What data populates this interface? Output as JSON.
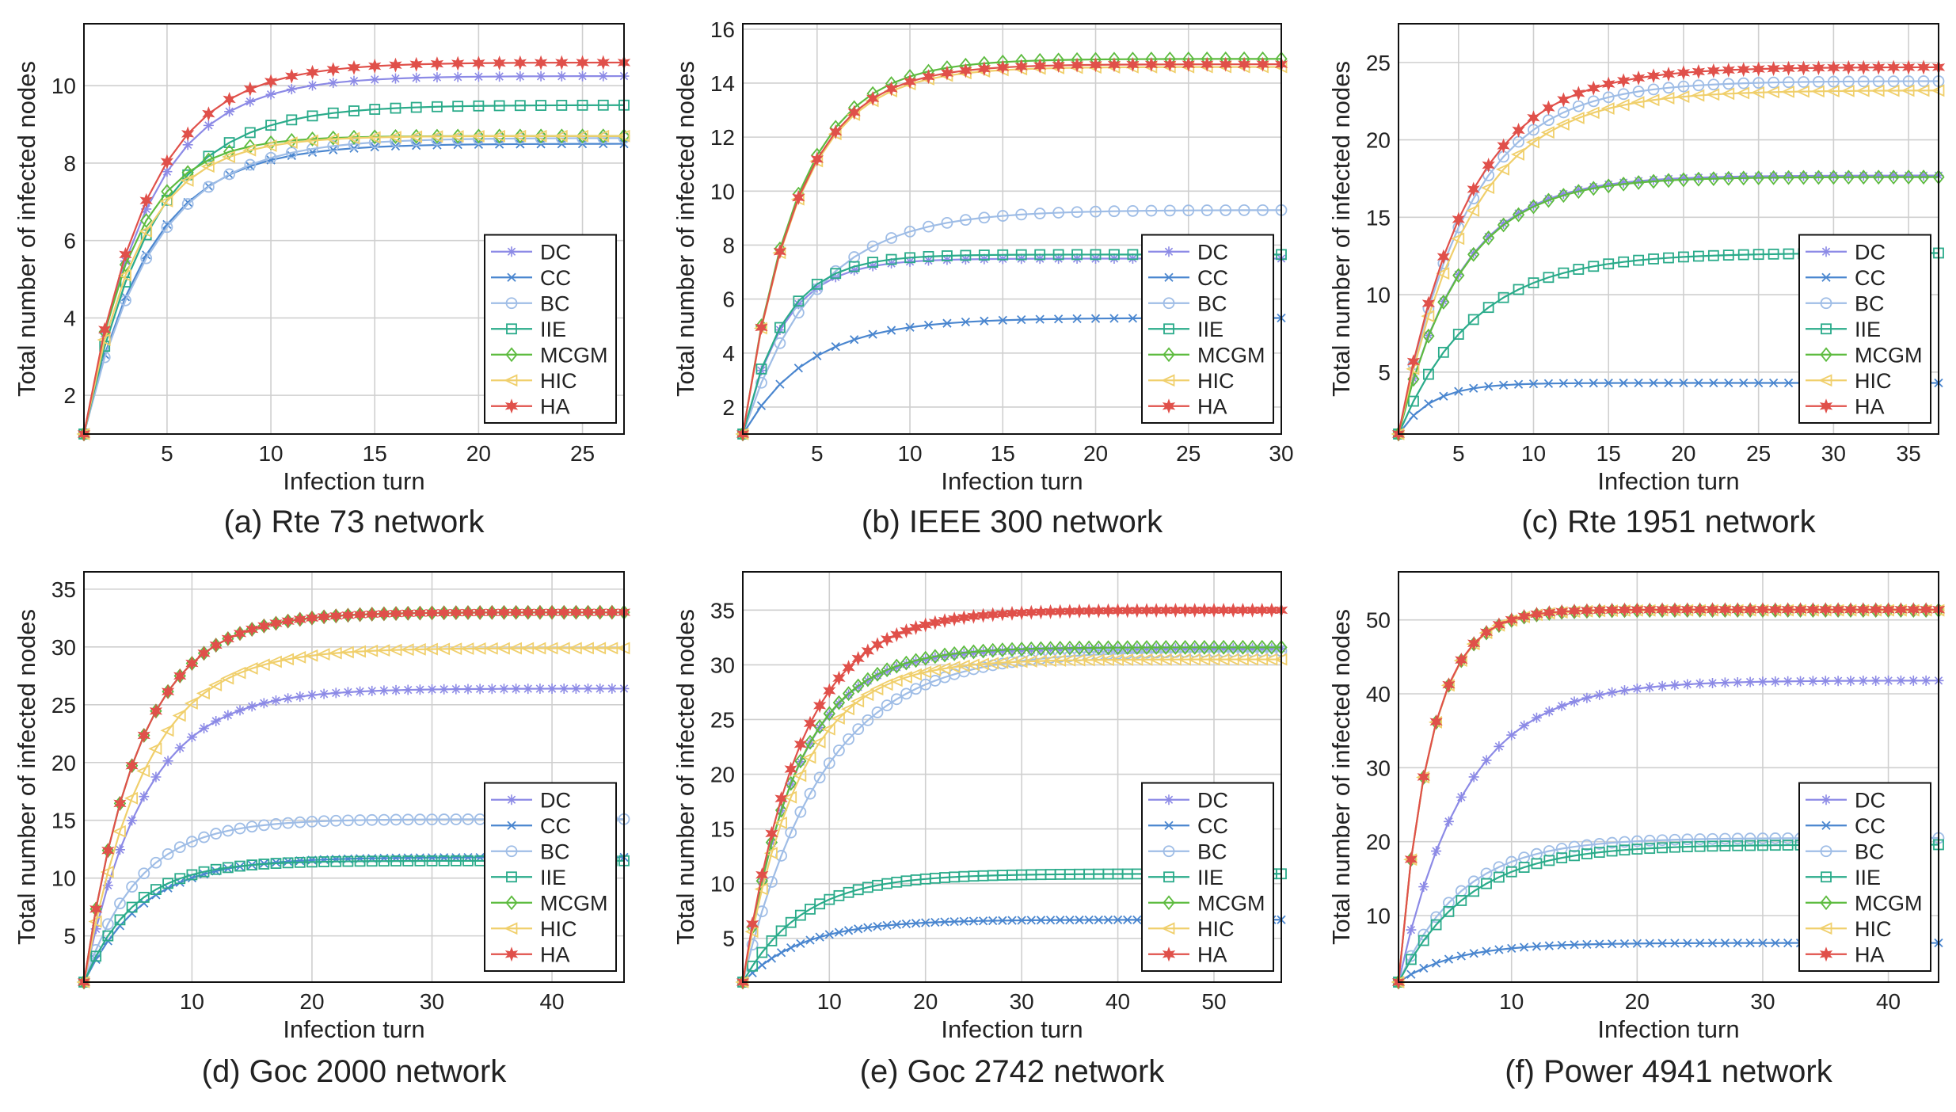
{
  "series_styles": [
    {
      "name": "DC",
      "color": "#8c8ae6",
      "marker": "asterisk"
    },
    {
      "name": "CC",
      "color": "#4a86cf",
      "marker": "x"
    },
    {
      "name": "BC",
      "color": "#9fbde6",
      "marker": "circle"
    },
    {
      "name": "IIE",
      "color": "#2aab8a",
      "marker": "square"
    },
    {
      "name": "MCGM",
      "color": "#5dbb3f",
      "marker": "diamond"
    },
    {
      "name": "HIC",
      "color": "#f0cf6b",
      "marker": "triangle-left"
    },
    {
      "name": "HA",
      "color": "#e0504a",
      "marker": "star"
    }
  ],
  "chart_data": [
    {
      "type": "line",
      "caption": "(a) Rte 73 network",
      "xlabel": "Infection turn",
      "ylabel": "Total number of infected nodes",
      "xlim": [
        1,
        27
      ],
      "ylim": [
        1,
        11.6
      ],
      "xticks": [
        5,
        10,
        15,
        20,
        25
      ],
      "yticks": [
        2,
        4,
        6,
        8,
        10
      ],
      "n_points": 27,
      "grid": true,
      "legend": "bottom-right",
      "series": [
        {
          "name": "DC",
          "start": 1,
          "final": 10.25,
          "rate": 0.33
        },
        {
          "name": "CC",
          "start": 1,
          "final": 8.5,
          "rate": 0.32
        },
        {
          "name": "BC",
          "start": 1,
          "final": 8.65,
          "rate": 0.3
        },
        {
          "name": "IIE",
          "start": 1,
          "final": 9.5,
          "rate": 0.31
        },
        {
          "name": "MCGM",
          "start": 1,
          "final": 8.7,
          "rate": 0.42
        },
        {
          "name": "HIC",
          "start": 1,
          "final": 8.7,
          "rate": 0.38
        },
        {
          "name": "HA",
          "start": 1,
          "final": 10.6,
          "rate": 0.33
        }
      ]
    },
    {
      "type": "line",
      "caption": "(b) IEEE 300 network",
      "xlabel": "Infection turn",
      "ylabel": "Total number of infected nodes",
      "xlim": [
        1,
        30
      ],
      "ylim": [
        1,
        16.2
      ],
      "xticks": [
        5,
        10,
        15,
        20,
        25,
        30
      ],
      "yticks": [
        2,
        4,
        6,
        8,
        10,
        12,
        14,
        16
      ],
      "n_points": 30,
      "grid": true,
      "legend": "bottom-right",
      "series": [
        {
          "name": "DC",
          "start": 1,
          "final": 7.5,
          "rate": 0.45
        },
        {
          "name": "CC",
          "start": 1,
          "final": 5.3,
          "rate": 0.28
        },
        {
          "name": "BC",
          "start": 1,
          "final": 9.3,
          "rate": 0.26
        },
        {
          "name": "IIE",
          "start": 1,
          "final": 7.65,
          "rate": 0.45
        },
        {
          "name": "MCGM",
          "start": 1,
          "final": 14.9,
          "rate": 0.34
        },
        {
          "name": "HIC",
          "start": 1,
          "final": 14.6,
          "rate": 0.34
        },
        {
          "name": "HA",
          "start": 1,
          "final": 14.7,
          "rate": 0.34
        }
      ]
    },
    {
      "type": "line",
      "caption": "(c) Rte 1951 network",
      "xlabel": "Infection turn",
      "ylabel": "Total number of infected nodes",
      "xlim": [
        1,
        37
      ],
      "ylim": [
        1,
        27.5
      ],
      "xticks": [
        5,
        10,
        15,
        20,
        25,
        30,
        35
      ],
      "yticks": [
        5,
        10,
        15,
        20,
        25
      ],
      "n_points": 37,
      "grid": true,
      "legend": "bottom-right",
      "series": [
        {
          "name": "DC",
          "start": 1,
          "final": 17.7,
          "rate": 0.24
        },
        {
          "name": "CC",
          "start": 1,
          "final": 4.3,
          "rate": 0.45
        },
        {
          "name": "BC",
          "start": 1,
          "final": 23.8,
          "rate": 0.22
        },
        {
          "name": "IIE",
          "start": 1,
          "final": 12.7,
          "rate": 0.2
        },
        {
          "name": "MCGM",
          "start": 1,
          "final": 17.6,
          "rate": 0.24
        },
        {
          "name": "HIC",
          "start": 1,
          "final": 23.2,
          "rate": 0.21
        },
        {
          "name": "HA",
          "start": 1,
          "final": 24.7,
          "rate": 0.22
        }
      ]
    },
    {
      "type": "line",
      "caption": "(d) Goc 2000 network",
      "xlabel": "Infection turn",
      "ylabel": "Total number of infected nodes",
      "xlim": [
        1,
        46
      ],
      "ylim": [
        1,
        36.5
      ],
      "xticks": [
        10,
        20,
        30,
        40
      ],
      "yticks": [
        5,
        10,
        15,
        20,
        25,
        30,
        35
      ],
      "n_points": 46,
      "grid": true,
      "legend": "bottom-right",
      "series": [
        {
          "name": "DC",
          "start": 1,
          "final": 26.4,
          "rate": 0.2
        },
        {
          "name": "CC",
          "start": 1,
          "final": 11.8,
          "rate": 0.2
        },
        {
          "name": "BC",
          "start": 1,
          "final": 15.1,
          "rate": 0.22
        },
        {
          "name": "IIE",
          "start": 1,
          "final": 11.5,
          "rate": 0.24
        },
        {
          "name": "MCGM",
          "start": 1,
          "final": 33.0,
          "rate": 0.22
        },
        {
          "name": "HIC",
          "start": 1,
          "final": 29.9,
          "rate": 0.2
        },
        {
          "name": "HA",
          "start": 1,
          "final": 33.0,
          "rate": 0.22
        }
      ]
    },
    {
      "type": "line",
      "caption": "(e) Goc 2742 network",
      "xlabel": "Infection turn",
      "ylabel": "Total number of infected nodes",
      "xlim": [
        1,
        57
      ],
      "ylim": [
        1,
        38.5
      ],
      "xticks": [
        10,
        20,
        30,
        40,
        50
      ],
      "yticks": [
        5,
        10,
        15,
        20,
        25,
        30,
        35
      ],
      "n_points": 57,
      "grid": true,
      "legend": "bottom-right",
      "series": [
        {
          "name": "DC",
          "start": 1,
          "final": 31.5,
          "rate": 0.18
        },
        {
          "name": "CC",
          "start": 1,
          "final": 6.7,
          "rate": 0.16
        },
        {
          "name": "BC",
          "start": 1,
          "final": 31.3,
          "rate": 0.12
        },
        {
          "name": "IIE",
          "start": 1,
          "final": 10.9,
          "rate": 0.16
        },
        {
          "name": "MCGM",
          "start": 1,
          "final": 31.6,
          "rate": 0.18
        },
        {
          "name": "HIC",
          "start": 1,
          "final": 30.5,
          "rate": 0.17
        },
        {
          "name": "HA",
          "start": 1,
          "final": 35.0,
          "rate": 0.17
        }
      ]
    },
    {
      "type": "line",
      "caption": "(f) Power 4941 network",
      "xlabel": "Infection turn",
      "ylabel": "Total number of infected nodes",
      "xlim": [
        1,
        44
      ],
      "ylim": [
        1,
        56.5
      ],
      "xticks": [
        10,
        20,
        30,
        40
      ],
      "yticks": [
        10,
        20,
        30,
        40,
        50
      ],
      "n_points": 44,
      "grid": true,
      "legend": "bottom-right",
      "series": [
        {
          "name": "DC",
          "start": 1,
          "final": 41.8,
          "rate": 0.19
        },
        {
          "name": "CC",
          "start": 1,
          "final": 6.3,
          "rate": 0.22
        },
        {
          "name": "BC",
          "start": 1,
          "final": 20.5,
          "rate": 0.2
        },
        {
          "name": "IIE",
          "start": 1,
          "final": 19.6,
          "rate": 0.18
        },
        {
          "name": "MCGM",
          "start": 1,
          "final": 51.3,
          "rate": 0.4
        },
        {
          "name": "HIC",
          "start": 1,
          "final": 51.3,
          "rate": 0.4
        },
        {
          "name": "HA",
          "start": 1,
          "final": 51.4,
          "rate": 0.4
        }
      ]
    }
  ]
}
